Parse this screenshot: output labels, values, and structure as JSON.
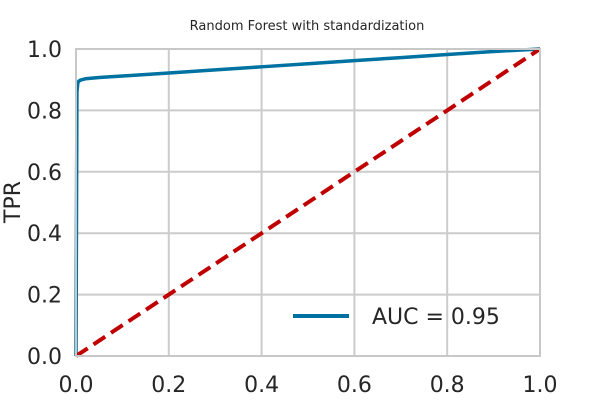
{
  "chart_data": {
    "type": "line",
    "title": "Random Forest with standardization",
    "xlabel": "",
    "ylabel": "TPR",
    "xlim": [
      0.0,
      1.0
    ],
    "ylim": [
      0.0,
      1.0
    ],
    "xticks": [
      "0.0",
      "0.2",
      "0.4",
      "0.6",
      "0.8",
      "1.0"
    ],
    "yticks": [
      "0.0",
      "0.2",
      "0.4",
      "0.6",
      "0.8",
      "1.0"
    ],
    "grid": true,
    "legend_position": "lower-right",
    "series": [
      {
        "name": "AUC = 0.95",
        "style": "solid",
        "color": "#0072a2",
        "x": [
          0.0,
          0.002,
          0.004,
          0.006,
          0.01,
          0.02,
          0.05,
          0.1,
          0.2,
          0.3,
          0.4,
          0.5,
          0.6,
          0.7,
          0.8,
          0.9,
          1.0
        ],
        "y": [
          0.0,
          0.86,
          0.89,
          0.895,
          0.899,
          0.903,
          0.907,
          0.912,
          0.922,
          0.932,
          0.942,
          0.952,
          0.962,
          0.972,
          0.982,
          0.992,
          1.0
        ]
      },
      {
        "style": "dashed",
        "color": "#c00000",
        "x": [
          0.0,
          1.0
        ],
        "y": [
          0.0,
          1.0
        ]
      }
    ]
  }
}
